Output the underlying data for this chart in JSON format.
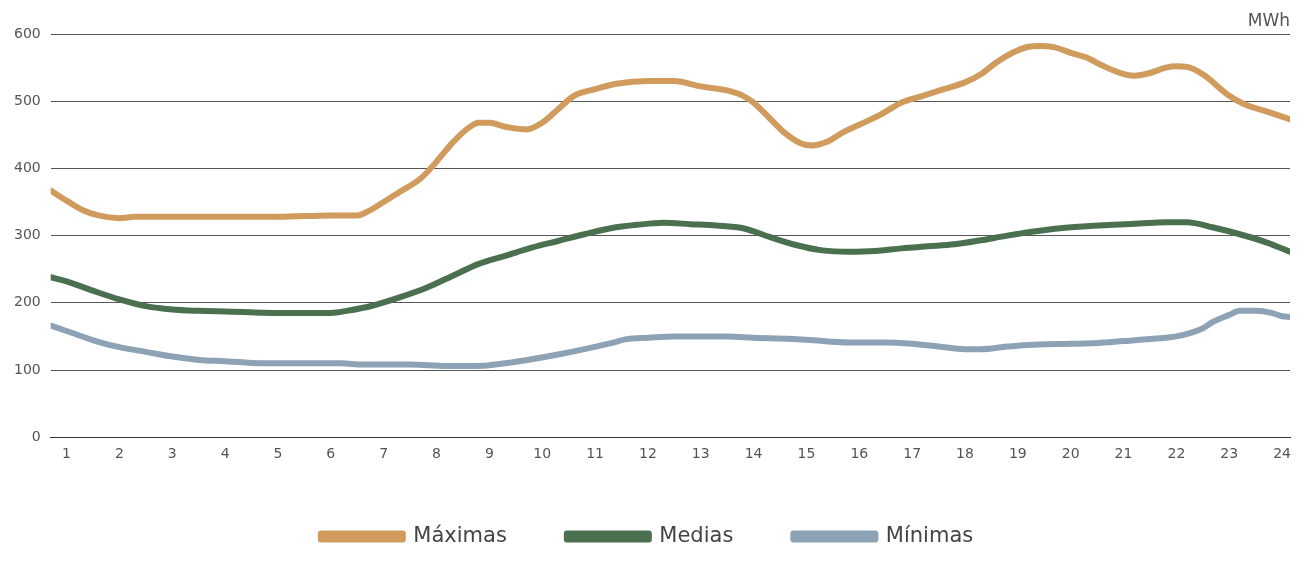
{
  "chart_data": {
    "type": "line",
    "ylabel": "MWh",
    "xlim": [
      0.7,
      24.15
    ],
    "xticks": [
      1,
      2,
      3,
      4,
      5,
      6,
      7,
      8,
      9,
      10,
      11,
      12,
      13,
      14,
      15,
      16,
      17,
      18,
      19,
      20,
      21,
      22,
      23,
      24
    ],
    "ylim": [
      0,
      600
    ],
    "yticks": [
      0,
      100,
      200,
      300,
      400,
      500,
      600
    ],
    "grid": "y",
    "legend": "bottom",
    "marker": "none",
    "line_style": "solid",
    "series": [
      {
        "name": "Máximas",
        "color": "#d09b5c",
        "x": [
          0.7,
          1,
          1.3,
          1.6,
          2,
          2.3,
          3,
          4,
          5,
          6,
          6.5,
          6.7,
          7,
          7.3,
          7.7,
          8,
          8.3,
          8.6,
          8.8,
          9,
          9.3,
          9.7,
          10,
          10.3,
          10.6,
          11,
          11.4,
          12,
          12.5,
          13,
          13.5,
          13.8,
          14,
          14.3,
          14.6,
          14.9,
          15.1,
          15.4,
          15.7,
          16,
          16.4,
          16.8,
          17.2,
          17.6,
          18,
          18.3,
          18.6,
          18.9,
          19.2,
          19.4,
          19.7,
          20,
          20.3,
          20.6,
          20.9,
          21.2,
          21.5,
          21.8,
          22,
          22.2,
          22.5,
          23,
          23.3,
          23.7,
          24.15
        ],
        "values": [
          367,
          352,
          338,
          330,
          326,
          328,
          328,
          328,
          328,
          330,
          330,
          336,
          350,
          365,
          385,
          410,
          438,
          460,
          468,
          468,
          462,
          458,
          468,
          488,
          508,
          518,
          526,
          530,
          530,
          522,
          516,
          508,
          498,
          475,
          452,
          437,
          434,
          440,
          454,
          465,
          480,
          498,
          508,
          518,
          528,
          540,
          558,
          572,
          581,
          582,
          580,
          572,
          565,
          553,
          543,
          538,
          542,
          550,
          552,
          551,
          540,
          508,
          495,
          485,
          473
        ]
      },
      {
        "name": "Medias",
        "color": "#4a7050",
        "x": [
          0.7,
          1,
          1.5,
          2,
          2.5,
          3,
          3.5,
          4,
          5,
          6,
          6.3,
          6.8,
          7.3,
          7.8,
          8.3,
          8.8,
          9.3,
          9.8,
          10.3,
          10.8,
          11.3,
          11.8,
          12.3,
          12.8,
          13.3,
          13.8,
          14.3,
          14.8,
          15.3,
          15.8,
          16.3,
          16.8,
          17.3,
          17.8,
          18.3,
          18.8,
          19.3,
          19.8,
          20.3,
          20.8,
          21.3,
          21.8,
          22.2,
          22.7,
          23.2,
          23.7,
          24.15
        ],
        "values": [
          238,
          232,
          218,
          205,
          195,
          190,
          188,
          187,
          185,
          185,
          188,
          196,
          208,
          222,
          240,
          258,
          270,
          282,
          292,
          302,
          311,
          316,
          319,
          317,
          315,
          311,
          298,
          286,
          278,
          276,
          277,
          281,
          284,
          287,
          293,
          300,
          306,
          311,
          314,
          316,
          318,
          320,
          320,
          312,
          302,
          290,
          276
        ]
      },
      {
        "name": "Mínimas",
        "color": "#8da3b5",
        "x": [
          0.7,
          1,
          1.6,
          2,
          2.5,
          3,
          3.5,
          4,
          4.7,
          5.5,
          6.2,
          6.6,
          7.5,
          8.2,
          8.8,
          9.3,
          9.8,
          10.3,
          10.8,
          11.3,
          11.6,
          12,
          12.5,
          13.5,
          14,
          15,
          15.8,
          16.5,
          17,
          17.5,
          18,
          18.3,
          18.8,
          19.4,
          20,
          20.5,
          21,
          21.5,
          22,
          22.3,
          22.5,
          22.7,
          23,
          23.2,
          23.5,
          23.8,
          24,
          24.15
        ],
        "values": [
          166,
          158,
          142,
          134,
          127,
          120,
          115,
          113,
          110,
          110,
          110,
          108,
          108,
          106,
          106,
          110,
          116,
          123,
          131,
          140,
          146,
          148,
          150,
          150,
          148,
          145,
          141,
          141,
          139,
          135,
          131,
          131,
          135,
          138,
          139,
          140,
          143,
          146,
          150,
          156,
          162,
          172,
          182,
          188,
          188,
          185,
          180,
          179
        ]
      }
    ]
  }
}
